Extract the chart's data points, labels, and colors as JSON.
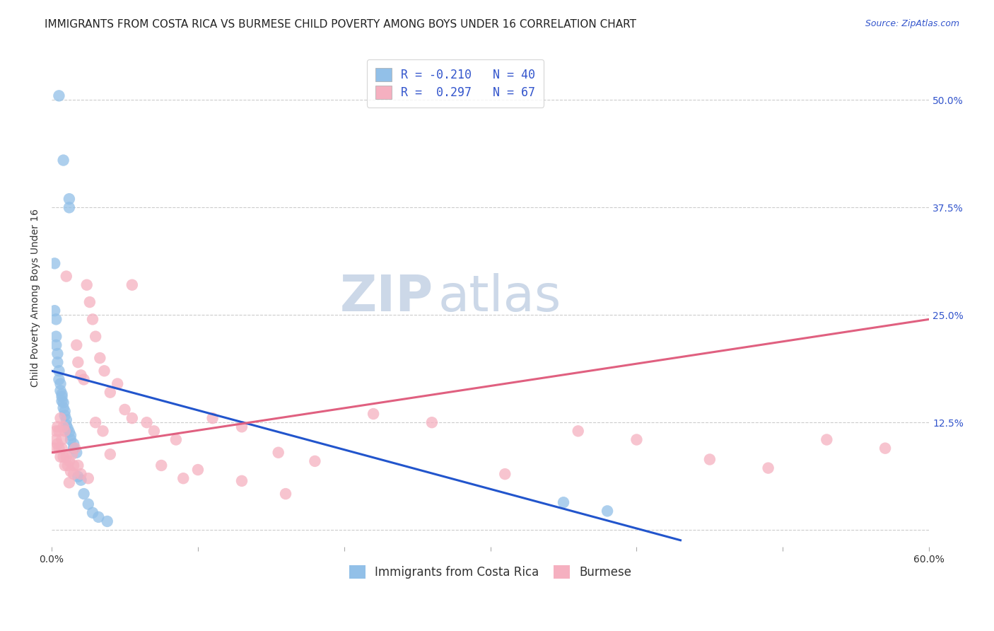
{
  "title": "IMMIGRANTS FROM COSTA RICA VS BURMESE CHILD POVERTY AMONG BOYS UNDER 16 CORRELATION CHART",
  "source": "Source: ZipAtlas.com",
  "ylabel": "Child Poverty Among Boys Under 16",
  "ytick_vals": [
    0.0,
    0.125,
    0.25,
    0.375,
    0.5
  ],
  "ytick_labels_right": [
    "",
    "12.5%",
    "25.0%",
    "37.5%",
    "50.0%"
  ],
  "xtick_vals": [
    0.0,
    0.1,
    0.2,
    0.3,
    0.4,
    0.5,
    0.6
  ],
  "xlim": [
    0.0,
    0.6
  ],
  "ylim": [
    -0.02,
    0.56
  ],
  "blue_color": "#92c0e8",
  "pink_color": "#f5b0c0",
  "blue_line_color": "#2255cc",
  "pink_line_color": "#e06080",
  "watermark_zip": "ZIP",
  "watermark_atlas": "atlas",
  "watermark_color": "#ccd8e8",
  "blue_scatter_x": [
    0.005,
    0.008,
    0.012,
    0.012,
    0.002,
    0.002,
    0.003,
    0.003,
    0.003,
    0.004,
    0.004,
    0.005,
    0.005,
    0.006,
    0.006,
    0.007,
    0.007,
    0.007,
    0.008,
    0.008,
    0.009,
    0.009,
    0.01,
    0.01,
    0.011,
    0.012,
    0.013,
    0.013,
    0.015,
    0.015,
    0.017,
    0.018,
    0.02,
    0.022,
    0.025,
    0.028,
    0.032,
    0.038,
    0.35,
    0.38
  ],
  "blue_scatter_y": [
    0.505,
    0.43,
    0.385,
    0.375,
    0.31,
    0.255,
    0.245,
    0.225,
    0.215,
    0.205,
    0.195,
    0.185,
    0.175,
    0.17,
    0.162,
    0.158,
    0.155,
    0.15,
    0.148,
    0.142,
    0.138,
    0.133,
    0.128,
    0.122,
    0.118,
    0.114,
    0.11,
    0.105,
    0.1,
    0.095,
    0.09,
    0.062,
    0.058,
    0.042,
    0.03,
    0.02,
    0.015,
    0.01,
    0.032,
    0.022
  ],
  "pink_scatter_x": [
    0.002,
    0.003,
    0.003,
    0.004,
    0.004,
    0.005,
    0.005,
    0.006,
    0.006,
    0.007,
    0.007,
    0.008,
    0.008,
    0.009,
    0.009,
    0.01,
    0.011,
    0.012,
    0.013,
    0.014,
    0.015,
    0.016,
    0.017,
    0.018,
    0.02,
    0.022,
    0.024,
    0.026,
    0.028,
    0.03,
    0.033,
    0.036,
    0.04,
    0.045,
    0.05,
    0.055,
    0.065,
    0.075,
    0.09,
    0.11,
    0.13,
    0.155,
    0.18,
    0.22,
    0.26,
    0.31,
    0.36,
    0.4,
    0.45,
    0.49,
    0.53,
    0.57,
    0.01,
    0.012,
    0.015,
    0.018,
    0.02,
    0.025,
    0.03,
    0.035,
    0.04,
    0.055,
    0.07,
    0.085,
    0.1,
    0.13,
    0.16
  ],
  "pink_scatter_y": [
    0.095,
    0.105,
    0.115,
    0.1,
    0.12,
    0.095,
    0.115,
    0.085,
    0.13,
    0.095,
    0.105,
    0.085,
    0.12,
    0.075,
    0.115,
    0.085,
    0.075,
    0.08,
    0.068,
    0.088,
    0.075,
    0.095,
    0.215,
    0.195,
    0.18,
    0.175,
    0.285,
    0.265,
    0.245,
    0.225,
    0.2,
    0.185,
    0.16,
    0.17,
    0.14,
    0.13,
    0.125,
    0.075,
    0.06,
    0.13,
    0.12,
    0.09,
    0.08,
    0.135,
    0.125,
    0.065,
    0.115,
    0.105,
    0.082,
    0.072,
    0.105,
    0.095,
    0.295,
    0.055,
    0.065,
    0.075,
    0.065,
    0.06,
    0.125,
    0.115,
    0.088,
    0.285,
    0.115,
    0.105,
    0.07,
    0.057,
    0.042
  ],
  "blue_line_x": [
    0.0,
    0.43
  ],
  "blue_line_y": [
    0.185,
    -0.012
  ],
  "pink_line_x": [
    0.0,
    0.6
  ],
  "pink_line_y": [
    0.09,
    0.245
  ],
  "title_fontsize": 11,
  "source_fontsize": 9,
  "axis_label_fontsize": 10,
  "tick_fontsize": 10,
  "legend_fontsize": 12,
  "watermark_fontsize": 52,
  "background_color": "#ffffff",
  "grid_color": "#cccccc",
  "right_tick_color": "#3355cc",
  "legend1_label1": "R = -0.210   N = 40",
  "legend1_label2": "R =  0.297   N = 67",
  "legend2_label1": "Immigrants from Costa Rica",
  "legend2_label2": "Burmese"
}
